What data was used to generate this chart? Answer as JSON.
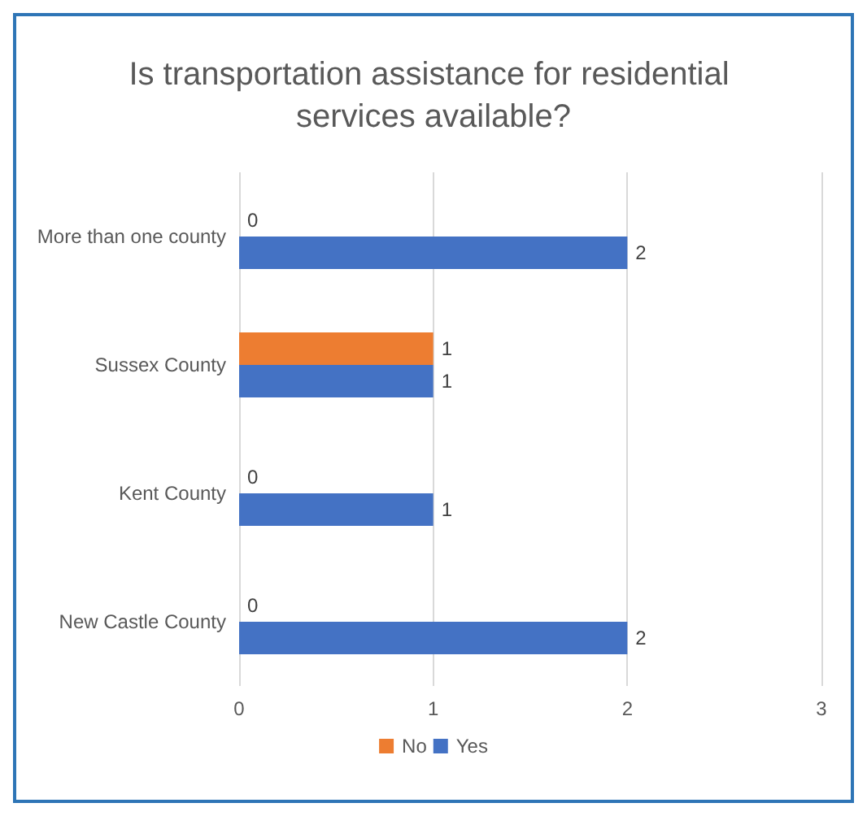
{
  "chart_data": {
    "type": "bar",
    "orientation": "horizontal",
    "title": "Is transportation assistance for residential services available?",
    "categories": [
      "More than one county",
      "Sussex County",
      "Kent County",
      "New Castle County"
    ],
    "series": [
      {
        "name": "No",
        "color": "#ed7d31",
        "values": [
          0,
          1,
          0,
          0
        ]
      },
      {
        "name": "Yes",
        "color": "#4472c4",
        "values": [
          2,
          1,
          1,
          2
        ]
      }
    ],
    "xlim": [
      0,
      3
    ],
    "xticks": [
      0,
      1,
      2,
      3
    ],
    "grid": "x",
    "legend": "bottom",
    "data_labels": true
  }
}
